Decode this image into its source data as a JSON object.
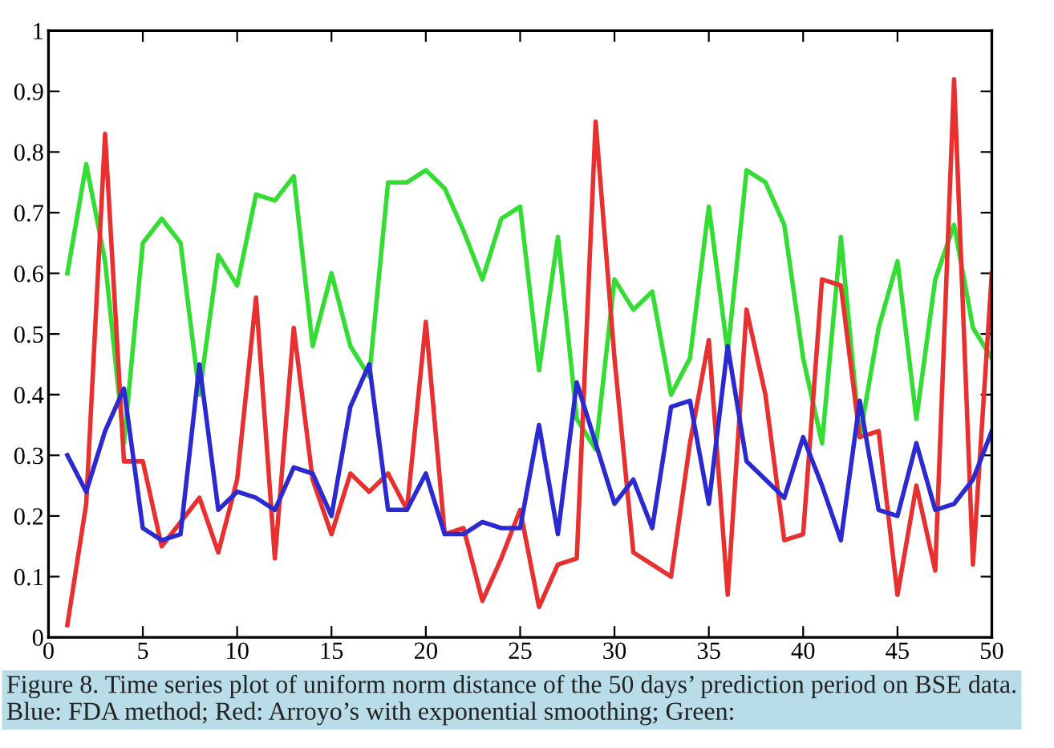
{
  "chart_data": {
    "type": "line",
    "x": [
      1,
      2,
      3,
      4,
      5,
      6,
      7,
      8,
      9,
      10,
      11,
      12,
      13,
      14,
      15,
      16,
      17,
      18,
      19,
      20,
      21,
      22,
      23,
      24,
      25,
      26,
      27,
      28,
      29,
      30,
      31,
      32,
      33,
      34,
      35,
      36,
      37,
      38,
      39,
      40,
      41,
      42,
      43,
      44,
      45,
      46,
      47,
      48,
      49,
      50
    ],
    "series": [
      {
        "color": "#33dd33",
        "values": [
          0.6,
          0.78,
          0.62,
          0.32,
          0.65,
          0.69,
          0.65,
          0.4,
          0.63,
          0.58,
          0.73,
          0.72,
          0.76,
          0.48,
          0.6,
          0.48,
          0.43,
          0.75,
          0.75,
          0.77,
          0.74,
          0.67,
          0.59,
          0.69,
          0.71,
          0.44,
          0.66,
          0.36,
          0.31,
          0.59,
          0.54,
          0.57,
          0.4,
          0.46,
          0.71,
          0.47,
          0.77,
          0.75,
          0.68,
          0.46,
          0.32,
          0.66,
          0.33,
          0.51,
          0.62,
          0.36,
          0.59,
          0.68,
          0.51,
          0.46
        ]
      },
      {
        "color": "#e83030",
        "values": [
          0.02,
          0.22,
          0.83,
          0.29,
          0.29,
          0.15,
          0.19,
          0.23,
          0.14,
          0.26,
          0.56,
          0.13,
          0.51,
          0.26,
          0.17,
          0.27,
          0.24,
          0.27,
          0.21,
          0.52,
          0.17,
          0.18,
          0.06,
          0.13,
          0.21,
          0.05,
          0.12,
          0.13,
          0.85,
          0.46,
          0.14,
          0.12,
          0.1,
          0.32,
          0.49,
          0.07,
          0.54,
          0.4,
          0.16,
          0.17,
          0.59,
          0.58,
          0.33,
          0.34,
          0.07,
          0.25,
          0.11,
          0.92,
          0.12,
          0.6
        ]
      },
      {
        "color": "#2a2ad0",
        "values": [
          0.3,
          0.24,
          0.34,
          0.41,
          0.18,
          0.16,
          0.17,
          0.45,
          0.21,
          0.24,
          0.23,
          0.21,
          0.28,
          0.27,
          0.2,
          0.38,
          0.45,
          0.21,
          0.21,
          0.27,
          0.17,
          0.17,
          0.19,
          0.18,
          0.18,
          0.35,
          0.17,
          0.42,
          0.32,
          0.22,
          0.26,
          0.18,
          0.38,
          0.39,
          0.22,
          0.48,
          0.29,
          0.26,
          0.23,
          0.33,
          0.25,
          0.16,
          0.39,
          0.21,
          0.2,
          0.32,
          0.21,
          0.22,
          0.26,
          0.34
        ]
      }
    ],
    "xlim": [
      0,
      50
    ],
    "xticks": [
      0,
      5,
      10,
      15,
      20,
      25,
      30,
      35,
      40,
      45,
      50
    ],
    "ylim": [
      0,
      1
    ],
    "yticks": [
      0,
      0.1,
      0.2,
      0.3,
      0.4,
      0.5,
      0.6,
      0.7,
      0.8,
      0.9,
      1
    ],
    "annotations": [
      "Figure 8. Time series plot of uniform norm distance of the 50 days’ prediction period on BSE data. Blue: FDA method; Red: Arroyo’s with exponential smoothing; Green:"
    ]
  }
}
